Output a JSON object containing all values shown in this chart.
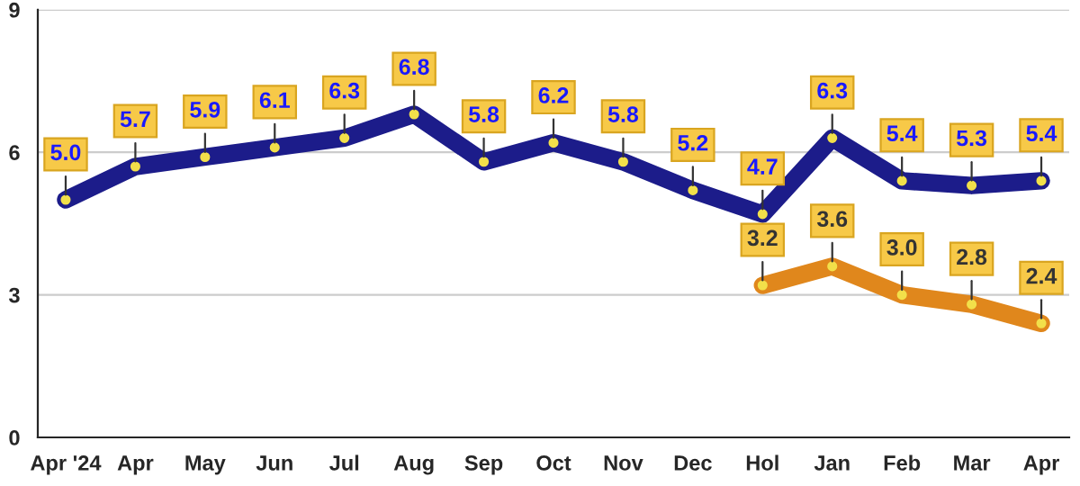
{
  "chart_data": {
    "type": "line",
    "categories": [
      "Apr '24",
      "Apr",
      "May",
      "Jun",
      "Jul",
      "Aug",
      "Sep",
      "Oct",
      "Nov",
      "Dec",
      "Hol",
      "Jan",
      "Feb",
      "Mar",
      "Apr"
    ],
    "series": [
      {
        "color": "#1c1c8a",
        "values": [
          5.0,
          5.7,
          5.9,
          6.1,
          6.3,
          6.8,
          5.8,
          6.2,
          5.8,
          5.2,
          4.7,
          6.3,
          5.4,
          5.3,
          5.4
        ],
        "value_labels": [
          "5.0",
          "5.7",
          "5.9",
          "6.1",
          "6.3",
          "6.8",
          "5.8",
          "6.2",
          "5.8",
          "5.2",
          "4.7",
          "6.3",
          "5.4",
          "5.3",
          "5.4"
        ]
      },
      {
        "color": "#e0871c",
        "values": [
          null,
          null,
          null,
          null,
          null,
          null,
          null,
          null,
          null,
          null,
          3.2,
          3.6,
          3.0,
          2.8,
          2.4
        ],
        "value_labels": [
          null,
          null,
          null,
          null,
          null,
          null,
          null,
          null,
          null,
          null,
          "3.2",
          "3.6",
          "3.0",
          "2.8",
          "2.4"
        ]
      }
    ],
    "ylim": [
      0,
      9
    ],
    "yticks": [
      0,
      3,
      6,
      9
    ],
    "grid": "y",
    "marker": "circle",
    "line_style": "solid",
    "legend": false
  }
}
